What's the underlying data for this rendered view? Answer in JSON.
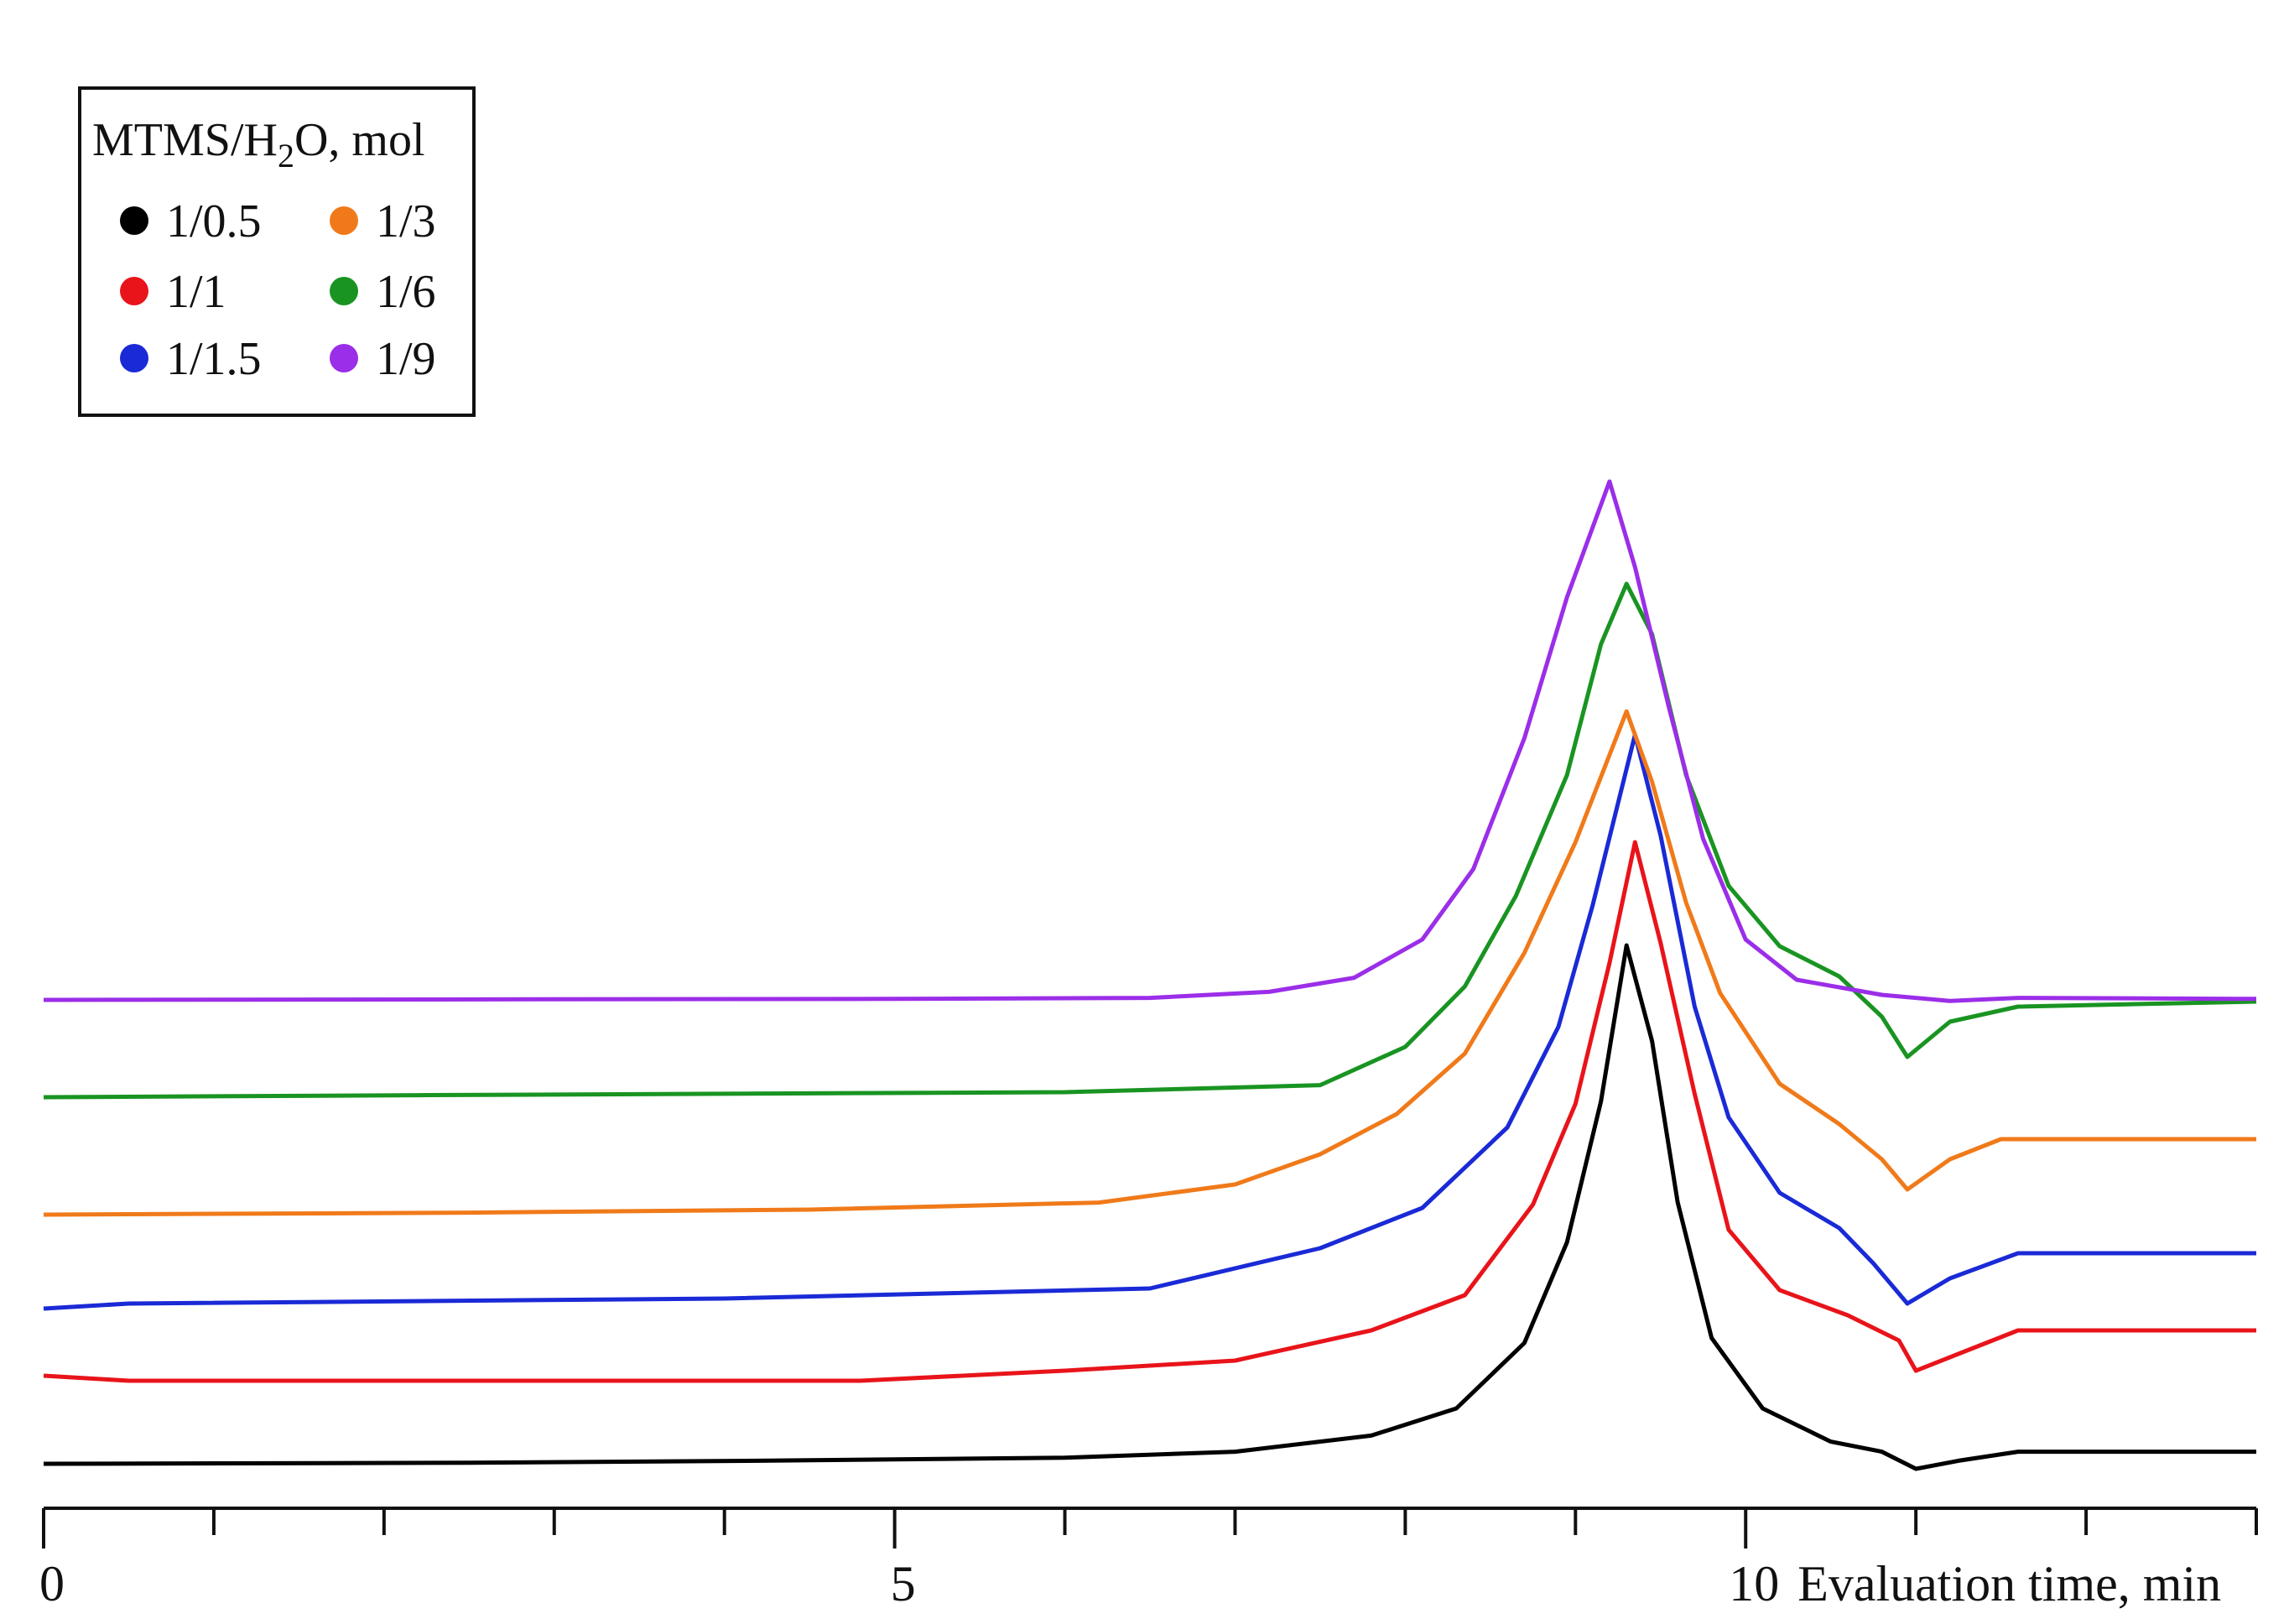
{
  "chart_data": {
    "type": "line",
    "title": "",
    "xlabel": "Evaluation time, min",
    "ylabel": "",
    "xlim": [
      0,
      13
    ],
    "x_ticks": [
      0,
      5,
      10
    ],
    "x_tick_labels": [
      "0",
      "5",
      "10"
    ],
    "minor_tick_step": 1,
    "grid": false,
    "legend": {
      "title_main": "MTMS/H",
      "title_sub": "2",
      "title_rest": "O, mol",
      "placement": "top-left"
    },
    "series": [
      {
        "name": "1/0.5",
        "color": "#000000",
        "points": [
          [
            0,
            0.0
          ],
          [
            2.5,
            0.01
          ],
          [
            4.2,
            0.03
          ],
          [
            6.0,
            0.06
          ],
          [
            7.0,
            0.12
          ],
          [
            7.8,
            0.28
          ],
          [
            8.3,
            0.55
          ],
          [
            8.7,
            1.2
          ],
          [
            8.95,
            2.2
          ],
          [
            9.15,
            3.6
          ],
          [
            9.3,
            5.15
          ],
          [
            9.45,
            4.2
          ],
          [
            9.6,
            2.6
          ],
          [
            9.8,
            1.25
          ],
          [
            10.1,
            0.55
          ],
          [
            10.5,
            0.22
          ],
          [
            10.8,
            0.12
          ],
          [
            11.0,
            -0.05
          ],
          [
            11.25,
            0.03
          ],
          [
            11.6,
            0.12
          ],
          [
            13.0,
            0.12
          ]
        ]
      },
      {
        "name": "1/1",
        "color": "#e8141a",
        "points": [
          [
            0,
            0.0
          ],
          [
            0.5,
            -0.05
          ],
          [
            4.8,
            -0.05
          ],
          [
            6.0,
            0.05
          ],
          [
            7.0,
            0.15
          ],
          [
            7.8,
            0.45
          ],
          [
            8.35,
            0.8
          ],
          [
            8.75,
            1.7
          ],
          [
            9.0,
            2.7
          ],
          [
            9.2,
            4.1
          ],
          [
            9.35,
            5.3
          ],
          [
            9.5,
            4.3
          ],
          [
            9.7,
            2.8
          ],
          [
            9.9,
            1.45
          ],
          [
            10.2,
            0.85
          ],
          [
            10.6,
            0.6
          ],
          [
            10.9,
            0.35
          ],
          [
            11.0,
            0.05
          ],
          [
            11.3,
            0.25
          ],
          [
            11.6,
            0.45
          ],
          [
            13.0,
            0.45
          ]
        ]
      },
      {
        "name": "1/1.5",
        "color": "#1a2ad6",
        "points": [
          [
            0,
            0.0
          ],
          [
            0.5,
            0.05
          ],
          [
            4.0,
            0.1
          ],
          [
            6.5,
            0.2
          ],
          [
            7.5,
            0.6
          ],
          [
            8.1,
            1.0
          ],
          [
            8.6,
            1.8
          ],
          [
            8.9,
            2.8
          ],
          [
            9.1,
            4.0
          ],
          [
            9.35,
            5.7
          ],
          [
            9.5,
            4.7
          ],
          [
            9.7,
            3.0
          ],
          [
            9.9,
            1.9
          ],
          [
            10.2,
            1.15
          ],
          [
            10.55,
            0.8
          ],
          [
            10.75,
            0.45
          ],
          [
            10.95,
            0.05
          ],
          [
            11.2,
            0.3
          ],
          [
            11.6,
            0.55
          ],
          [
            12.5,
            0.55
          ],
          [
            13.0,
            0.55
          ]
        ]
      },
      {
        "name": "1/3",
        "color": "#f07a1a",
        "points": [
          [
            0,
            0.0
          ],
          [
            2.5,
            0.02
          ],
          [
            4.5,
            0.05
          ],
          [
            6.2,
            0.12
          ],
          [
            7.0,
            0.3
          ],
          [
            7.5,
            0.6
          ],
          [
            7.95,
            1.0
          ],
          [
            8.35,
            1.6
          ],
          [
            8.7,
            2.6
          ],
          [
            9.0,
            3.7
          ],
          [
            9.3,
            5.0
          ],
          [
            9.45,
            4.3
          ],
          [
            9.65,
            3.1
          ],
          [
            9.85,
            2.2
          ],
          [
            10.2,
            1.3
          ],
          [
            10.55,
            0.9
          ],
          [
            10.8,
            0.55
          ],
          [
            10.95,
            0.25
          ],
          [
            11.2,
            0.55
          ],
          [
            11.5,
            0.75
          ],
          [
            13.0,
            0.75
          ]
        ]
      },
      {
        "name": "1/6",
        "color": "#199422",
        "points": [
          [
            0,
            0.0
          ],
          [
            2.2,
            0.02
          ],
          [
            6.0,
            0.05
          ],
          [
            7.5,
            0.12
          ],
          [
            8.0,
            0.5
          ],
          [
            8.35,
            1.1
          ],
          [
            8.65,
            2.0
          ],
          [
            8.95,
            3.2
          ],
          [
            9.15,
            4.5
          ],
          [
            9.3,
            5.1
          ],
          [
            9.45,
            4.6
          ],
          [
            9.65,
            3.2
          ],
          [
            9.9,
            2.1
          ],
          [
            10.2,
            1.5
          ],
          [
            10.55,
            1.2
          ],
          [
            10.8,
            0.8
          ],
          [
            10.95,
            0.4
          ],
          [
            11.2,
            0.75
          ],
          [
            11.6,
            0.9
          ],
          [
            13.0,
            0.95
          ]
        ]
      },
      {
        "name": "1/9",
        "color": "#9b2ee8",
        "points": [
          [
            0,
            0.0
          ],
          [
            5.0,
            0.01
          ],
          [
            6.5,
            0.02
          ],
          [
            7.2,
            0.08
          ],
          [
            7.7,
            0.22
          ],
          [
            8.1,
            0.6
          ],
          [
            8.4,
            1.3
          ],
          [
            8.7,
            2.6
          ],
          [
            8.95,
            4.0
          ],
          [
            9.2,
            5.15
          ],
          [
            9.35,
            4.3
          ],
          [
            9.55,
            2.9
          ],
          [
            9.75,
            1.6
          ],
          [
            10.0,
            0.6
          ],
          [
            10.3,
            0.2
          ],
          [
            10.8,
            0.05
          ],
          [
            11.2,
            -0.01
          ],
          [
            11.6,
            0.02
          ],
          [
            13.0,
            0.01
          ]
        ]
      }
    ]
  }
}
